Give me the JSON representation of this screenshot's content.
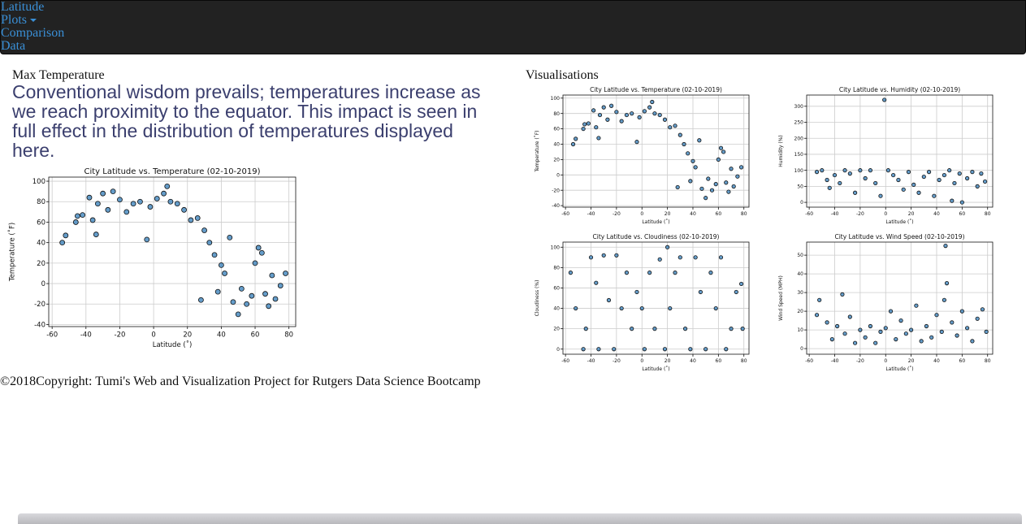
{
  "nav": {
    "brand": "Latitude",
    "links": [
      "Plots",
      "Comparison",
      "Data"
    ]
  },
  "left": {
    "heading": "Max Temperature",
    "description": "Conventional wisdom prevails; temperatures increase as we reach proximity to the equator. This impact is seen in full effect in the distribution of temperatures displayed here."
  },
  "right": {
    "heading": "Visualisations"
  },
  "footer": "©2018Copyright: Tumi's Web and Visualization Project for Rutgers Data Science Bootcamp",
  "chart_data": [
    {
      "type": "scatter",
      "title": "City Latitude vs. Temperature (02-10-2019)",
      "x_label": "Latitude (˚)",
      "y_label": "Temperature (˚F)",
      "color": "#3f85bd",
      "grid": true,
      "xlim": [
        -62,
        84
      ],
      "xticks": [
        -60,
        -40,
        -20,
        0,
        20,
        40,
        60,
        80
      ],
      "ylim": [
        -42,
        104
      ],
      "yticks": [
        -40,
        -20,
        0,
        20,
        40,
        60,
        80,
        100
      ],
      "x": [
        -54,
        -52,
        -46,
        -45,
        -42,
        -38,
        -36,
        -34,
        -33,
        -30,
        -27,
        -24,
        -20,
        -16,
        -12,
        -8,
        -4,
        -2,
        2,
        6,
        8,
        10,
        14,
        18,
        22,
        26,
        28,
        30,
        33,
        36,
        38,
        40,
        42,
        45,
        47,
        50,
        52,
        55,
        58,
        60,
        62,
        64,
        66,
        68,
        70,
        72,
        75,
        78
      ],
      "y": [
        40,
        47,
        60,
        66,
        67,
        84,
        62,
        48,
        78,
        88,
        72,
        90,
        82,
        70,
        78,
        80,
        43,
        75,
        83,
        88,
        95,
        80,
        78,
        72,
        62,
        64,
        -16,
        52,
        40,
        28,
        -8,
        18,
        10,
        45,
        -18,
        -30,
        -5,
        -20,
        -12,
        20,
        35,
        30,
        -10,
        -22,
        8,
        -15,
        -2,
        10
      ]
    },
    {
      "type": "scatter",
      "title": "City Latitude vs. Temperature (02-10-2019)",
      "x_label": "Latitude (˚)",
      "y_label": "Temperature (˚F)",
      "color": "#3f85bd",
      "grid": true,
      "xlim": [
        -62,
        84
      ],
      "xticks": [
        -60,
        -40,
        -20,
        0,
        20,
        40,
        60,
        80
      ],
      "ylim": [
        -42,
        104
      ],
      "yticks": [
        -40,
        -20,
        0,
        20,
        40,
        60,
        80,
        100
      ],
      "x": [
        -54,
        -52,
        -46,
        -45,
        -42,
        -38,
        -36,
        -34,
        -33,
        -30,
        -27,
        -24,
        -20,
        -16,
        -12,
        -8,
        -4,
        -2,
        2,
        6,
        8,
        10,
        14,
        18,
        22,
        26,
        28,
        30,
        33,
        36,
        38,
        40,
        42,
        45,
        47,
        50,
        52,
        55,
        58,
        60,
        62,
        64,
        66,
        68,
        70,
        72,
        75,
        78
      ],
      "y": [
        40,
        47,
        60,
        66,
        67,
        84,
        62,
        48,
        78,
        88,
        72,
        90,
        82,
        70,
        78,
        80,
        43,
        75,
        83,
        88,
        95,
        80,
        78,
        72,
        62,
        64,
        -16,
        52,
        40,
        28,
        -8,
        18,
        10,
        45,
        -18,
        -30,
        -5,
        -20,
        -12,
        20,
        35,
        30,
        -10,
        -22,
        8,
        -15,
        -2,
        10
      ]
    },
    {
      "type": "scatter",
      "title": "City Latitude vs. Humidity (02-10-2019)",
      "x_label": "Latitude (˚)",
      "y_label": "Humidity (%)",
      "color": "#3f85bd",
      "grid": true,
      "xlim": [
        -62,
        84
      ],
      "xticks": [
        -60,
        -40,
        -20,
        0,
        20,
        40,
        60,
        80
      ],
      "ylim": [
        -15,
        335
      ],
      "yticks": [
        0,
        50,
        100,
        150,
        200,
        250,
        300
      ],
      "x": [
        -54,
        -50,
        -46,
        -44,
        -40,
        -36,
        -32,
        -28,
        -24,
        -20,
        -16,
        -12,
        -8,
        -4,
        -1,
        2,
        6,
        10,
        14,
        18,
        22,
        26,
        30,
        34,
        38,
        42,
        46,
        50,
        52,
        54,
        58,
        60,
        64,
        68,
        72,
        75,
        78
      ],
      "y": [
        95,
        100,
        70,
        45,
        85,
        60,
        100,
        90,
        30,
        100,
        75,
        100,
        60,
        20,
        320,
        100,
        85,
        70,
        40,
        95,
        55,
        30,
        80,
        95,
        20,
        70,
        85,
        100,
        5,
        60,
        90,
        0,
        75,
        95,
        50,
        90,
        65
      ]
    },
    {
      "type": "scatter",
      "title": "City Latitude vs. Cloudiness (02-10-2019)",
      "x_label": "Latitude (˚)",
      "y_label": "Cloudiness (%)",
      "color": "#3f85bd",
      "grid": true,
      "xlim": [
        -62,
        84
      ],
      "xticks": [
        -60,
        -40,
        -20,
        0,
        20,
        40,
        60,
        80
      ],
      "ylim": [
        -5,
        105
      ],
      "yticks": [
        0,
        20,
        40,
        60,
        80,
        100
      ],
      "x": [
        -56,
        -52,
        -46,
        -44,
        -40,
        -36,
        -34,
        -30,
        -26,
        -22,
        -20,
        -16,
        -12,
        -8,
        -4,
        0,
        2,
        6,
        10,
        14,
        18,
        20,
        22,
        26,
        30,
        34,
        38,
        42,
        46,
        50,
        54,
        58,
        62,
        66,
        70,
        74,
        78,
        79
      ],
      "y": [
        75,
        40,
        0,
        20,
        90,
        65,
        0,
        92,
        48,
        0,
        92,
        40,
        75,
        20,
        56,
        40,
        0,
        75,
        20,
        88,
        0,
        100,
        40,
        75,
        90,
        20,
        0,
        90,
        56,
        0,
        75,
        40,
        90,
        0,
        20,
        56,
        64,
        20
      ]
    },
    {
      "type": "scatter",
      "title": "City Latitude vs. Wind Speed (02-10-2019)",
      "x_label": "Latitude (˚)",
      "y_label": "Wind Speed (MPH)",
      "color": "#3f85bd",
      "grid": true,
      "xlim": [
        -62,
        84
      ],
      "xticks": [
        -60,
        -40,
        -20,
        0,
        20,
        40,
        60,
        80
      ],
      "ylim": [
        -3,
        57
      ],
      "yticks": [
        0,
        10,
        20,
        30,
        40,
        50
      ],
      "x": [
        -54,
        -52,
        -46,
        -42,
        -38,
        -34,
        -32,
        -28,
        -24,
        -20,
        -16,
        -12,
        -8,
        -4,
        0,
        4,
        8,
        12,
        16,
        20,
        24,
        28,
        32,
        36,
        40,
        44,
        46,
        47,
        48,
        52,
        56,
        60,
        64,
        68,
        72,
        76,
        79
      ],
      "y": [
        18,
        26,
        14,
        5,
        12,
        29,
        8,
        17,
        3,
        10,
        6,
        12,
        3,
        9,
        11,
        20,
        5,
        15,
        8,
        10,
        23,
        4,
        12,
        6,
        18,
        9,
        26,
        55,
        35,
        14,
        7,
        20,
        11,
        4,
        16,
        21,
        9
      ]
    }
  ]
}
